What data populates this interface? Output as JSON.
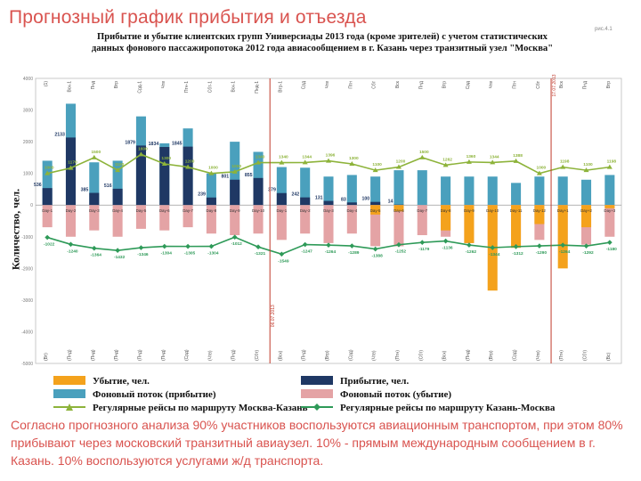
{
  "slide_title": "Прогнозный график прибытия и отъезда",
  "page_number": "рис.4.1",
  "footer_text": "Согласно прогнозного анализа 90% участников воспользуются авиационным транспортом, при этом 80% прибывают через московский транзитный авиаузел. 10% - прямым международным сообщением в г. Казань. 10% воспользуются услугами ж/д транспорта.",
  "colors": {
    "title_red": "#d9534f",
    "arrival": "#1f3864",
    "departure": "#f4a21c",
    "bg_arrival": "#4aa0bd",
    "bg_departure": "#e4a3a5",
    "line_mk": "#8db33a",
    "line_km": "#2e9a58",
    "marker_line": "#c0392b"
  },
  "chart_data": {
    "type": "bar",
    "title": "Прибытие и убытие клиентских групп Универсиады 2013 года (кроме зрителей) с учетом статистических данных фонового пассажиропотока 2012 года авиасообщением в г. Казань через транзитный узел \"Москва\"",
    "ylabel": "Количество, чел.",
    "ylim": [
      -5000,
      4000
    ],
    "yticks": [
      4000,
      3000,
      2000,
      1000,
      0,
      -1000,
      -2000,
      -3000,
      -4000,
      -5000
    ],
    "categories": [
      "Day-1",
      "Day-2",
      "Day-3",
      "Day-4",
      "Day-5",
      "Day-6",
      "Day-7",
      "Day-8",
      "Day-9",
      "Day-10",
      "Day-1",
      "Day-2",
      "Day-3",
      "Day-4",
      "Day-5",
      "Day-6",
      "Day-7",
      "Day-8",
      "Day-9",
      "Day-10",
      "Day-11",
      "Day-12",
      "Day+1",
      "Day+2",
      "Day+3"
    ],
    "top_labels": [
      "(1)",
      "Вск-1",
      "Пнд",
      "Втр",
      "Срд-1",
      "Чтв",
      "Птн-1",
      "Сбт-1",
      "Вск-1",
      "Пнд-1",
      "Втр-1",
      "Срд",
      "Чтв",
      "Птн",
      "Сбт",
      "Вск",
      "Пнд",
      "Втр",
      "Срд",
      "Чтв",
      "Птн",
      "Сбт",
      "Вск",
      "Пнд",
      "Втр"
    ],
    "bottom_labels": [
      "(Вт)",
      "(Пнд)",
      "(Пнд)",
      "(Пнд)",
      "(Пнд)",
      "(Пнд)",
      "(Срд)",
      "(Чтв)",
      "(Пнд)",
      "(Сбт)",
      "(Вск)",
      "(Пнд)",
      "(Втр)",
      "(Срд)",
      "(Чтв)",
      "(Птн)",
      "(Сбт)",
      "(Вск)",
      "(Пнд)",
      "(Втр)",
      "(Срд)",
      "(Чтв)",
      "(Птн)",
      "(Сбт)",
      "(Вс)"
    ],
    "vlines": [
      {
        "after_index": 9,
        "label": "06.07.2013"
      },
      {
        "after_index": 21,
        "label": "17.07.2013"
      }
    ],
    "series": [
      {
        "name": "Фоновый поток (прибытие)",
        "kind": "bar",
        "color_key": "bg_arrival",
        "values": [
          1400,
          3200,
          1350,
          1400,
          2800,
          1950,
          2420,
          1000,
          2000,
          1680,
          1200,
          1180,
          900,
          950,
          900,
          1100,
          1100,
          900,
          900,
          900,
          700,
          900,
          900,
          800,
          950
        ]
      },
      {
        "name": "Прибытие, чел.",
        "kind": "bar",
        "color_key": "arrival",
        "values": [
          536,
          2133,
          385,
          516,
          1879,
          1834,
          1845,
          239,
          801,
          855,
          379,
          242,
          131,
          83,
          100,
          14,
          0,
          0,
          0,
          0,
          0,
          0,
          0,
          0,
          0
        ]
      },
      {
        "name": "Фоновый поток (убытие)",
        "kind": "bar",
        "color_key": "bg_departure",
        "values": [
          -700,
          -1000,
          -800,
          -1000,
          -750,
          -800,
          -700,
          -900,
          -950,
          -900,
          -1100,
          -900,
          -1200,
          -900,
          -1300,
          -1300,
          -950,
          -1000,
          -1200,
          -1100,
          -1100,
          -1100,
          -1200,
          -1250,
          -1000
        ]
      },
      {
        "name": "Убытие, чел.",
        "kind": "bar",
        "color_key": "departure",
        "values": [
          0,
          0,
          0,
          0,
          0,
          0,
          0,
          0,
          0,
          0,
          0,
          0,
          0,
          0,
          -300,
          -200,
          0,
          -800,
          -1200,
          -2700,
          -1350,
          -600,
          -2000,
          -700,
          -100
        ]
      },
      {
        "name": "Регулярные рейсы по маршруту Москва-Казань",
        "kind": "line",
        "color_key": "line_mk",
        "values": [
          1000,
          1170,
          1500,
          1100,
          1600,
          1300,
          1200,
          1000,
          1050,
          1340,
          1340,
          1344,
          1396,
          1300,
          1100,
          1200,
          1500,
          1262,
          1360,
          1344,
          1388,
          1000,
          1198,
          1100,
          1198
        ]
      },
      {
        "name": "Регулярные рейсы по маршруту Казань-Москва",
        "kind": "line",
        "color_key": "line_km",
        "values": [
          -1022,
          -1240,
          -1364,
          -1432,
          -1346,
          -1304,
          -1305,
          -1304,
          -1012,
          -1321,
          -1549,
          -1247,
          -1264,
          -1289,
          -1388,
          -1252,
          -1179,
          -1136,
          -1262,
          -1344,
          -1312,
          -1290,
          -1264,
          -1292,
          -1180
        ]
      }
    ]
  },
  "legend": {
    "departure": "Убытие, чел.",
    "arrival": "Прибытие, чел.",
    "bg_arrival": "Фоновый поток (прибытие)",
    "bg_departure": "Фоновый поток (убытие)",
    "line_mk": "Регулярные рейсы по маршруту Москва-Казань",
    "line_km": "Регулярные рейсы по маршруту Казань-Москва"
  }
}
